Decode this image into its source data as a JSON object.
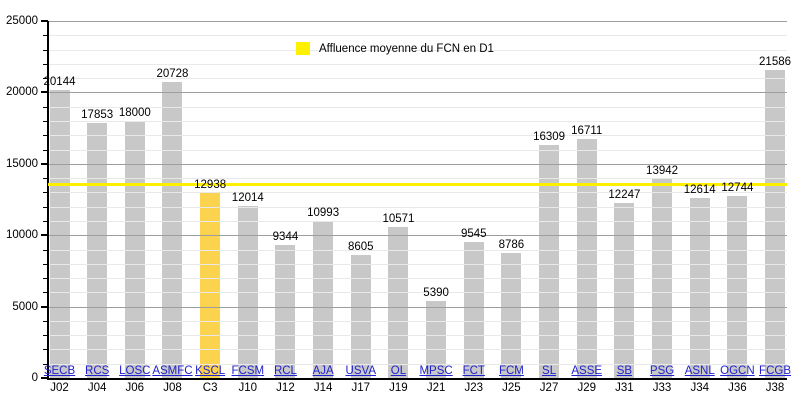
{
  "chart_data": {
    "type": "bar",
    "legend_label": "Affluence moyenne du FCN en D1",
    "average_line_value": 13550,
    "ylim": [
      0,
      25000
    ],
    "y_major_step": 5000,
    "y_minor_step": 1000,
    "y_tick_labels": [
      "0",
      "5000",
      "10000",
      "15000",
      "20000",
      "25000"
    ],
    "grid": "minor horizontal lines every 1000, major every 5000, drawn over bars",
    "legend_position": "top-center",
    "bars": [
      {
        "team": "SECB",
        "matchday": "J02",
        "value": 20144,
        "highlight": false
      },
      {
        "team": "RCS",
        "matchday": "J04",
        "value": 17853,
        "highlight": false
      },
      {
        "team": "LOSC",
        "matchday": "J06",
        "value": 18000,
        "highlight": false
      },
      {
        "team": "ASMFC",
        "matchday": "J08",
        "value": 20728,
        "highlight": false
      },
      {
        "team": "KSCL",
        "matchday": "C3",
        "value": 12938,
        "highlight": true
      },
      {
        "team": "FCSM",
        "matchday": "J10",
        "value": 12014,
        "highlight": false
      },
      {
        "team": "RCL",
        "matchday": "J12",
        "value": 9344,
        "highlight": false
      },
      {
        "team": "AJA",
        "matchday": "J14",
        "value": 10993,
        "highlight": false
      },
      {
        "team": "USVA",
        "matchday": "J17",
        "value": 8605,
        "highlight": false
      },
      {
        "team": "OL",
        "matchday": "J19",
        "value": 10571,
        "highlight": false
      },
      {
        "team": "MPSC",
        "matchday": "J21",
        "value": 5390,
        "highlight": false
      },
      {
        "team": "FCT",
        "matchday": "J23",
        "value": 9545,
        "highlight": false
      },
      {
        "team": "FCM",
        "matchday": "J25",
        "value": 8786,
        "highlight": false
      },
      {
        "team": "SL",
        "matchday": "J27",
        "value": 16309,
        "highlight": false
      },
      {
        "team": "ASSE",
        "matchday": "J29",
        "value": 16711,
        "highlight": false
      },
      {
        "team": "SB",
        "matchday": "J31",
        "value": 12247,
        "highlight": false
      },
      {
        "team": "PSG",
        "matchday": "J33",
        "value": 13942,
        "highlight": false
      },
      {
        "team": "ASNL",
        "matchday": "J34",
        "value": 12614,
        "highlight": false
      },
      {
        "team": "OGCN",
        "matchday": "J36",
        "value": 12744,
        "highlight": false
      },
      {
        "team": "FCGB",
        "matchday": "J38",
        "value": 21586,
        "highlight": false
      }
    ],
    "colors": {
      "bar": "#C8C8C8",
      "highlight_bar": "#FBD34E",
      "average_line": "#FFF000",
      "legend_swatch": "#FFF000",
      "team_link": "#2222CC",
      "major_gridline": "#9E9E9E",
      "minor_gridline": "#E9E9E9",
      "axis": "#000000"
    }
  }
}
